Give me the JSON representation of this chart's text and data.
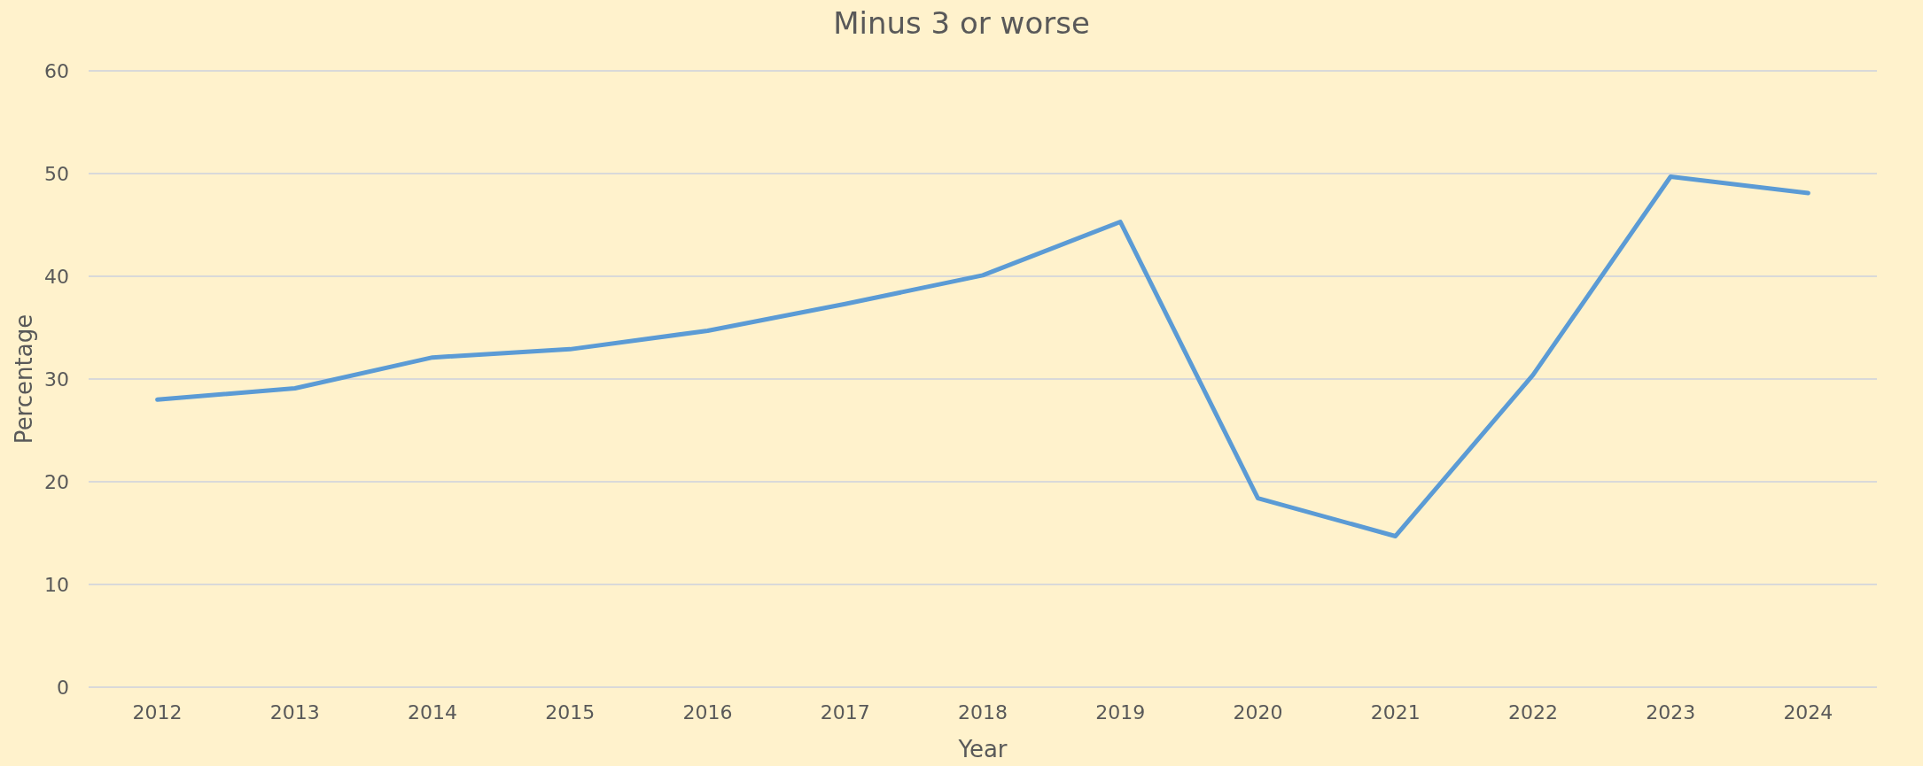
{
  "chart_data": {
    "type": "line",
    "title": "Minus 3 or worse",
    "xlabel": "Year",
    "ylabel": "Percentage",
    "categories": [
      "2012",
      "2013",
      "2014",
      "2015",
      "2016",
      "2017",
      "2018",
      "2019",
      "2020",
      "2021",
      "2022",
      "2023",
      "2024"
    ],
    "series": [
      {
        "color": "#5b9bd5",
        "values": [
          28.0,
          29.1,
          32.1,
          32.9,
          34.7,
          37.3,
          40.1,
          45.3,
          18.4,
          14.7,
          30.4,
          49.7,
          48.1
        ]
      }
    ],
    "ylim": [
      0,
      60
    ],
    "yticks": [
      0,
      10,
      20,
      30,
      40,
      50,
      60
    ],
    "grid": "y",
    "marker": "none",
    "line_style": "solid"
  }
}
